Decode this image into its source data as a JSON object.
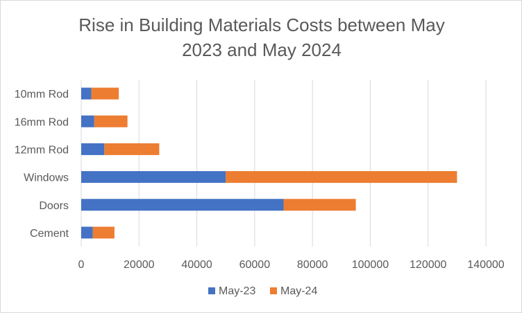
{
  "chart_data": {
    "type": "bar",
    "orientation": "horizontal",
    "stacked": true,
    "title_lines": [
      "Rise in Building Materials Costs between May",
      "2023 and May 2024"
    ],
    "categories": [
      "Cement",
      "Doors",
      "Windows",
      "12mm Rod",
      "16mm Rod",
      "10mm Rod"
    ],
    "series": [
      {
        "name": "May-23",
        "color": "#4472c4",
        "values": [
          4000,
          70000,
          50000,
          8000,
          4500,
          3500
        ]
      },
      {
        "name": "May-24",
        "color": "#ed7d31",
        "values": [
          7500,
          25000,
          80000,
          19000,
          11500,
          9500
        ]
      }
    ],
    "xlim": [
      0,
      140000
    ],
    "xticks": [
      "0",
      "20000",
      "40000",
      "60000",
      "80000",
      "100000",
      "120000",
      "140000"
    ],
    "grid": true,
    "legend_position": "bottom"
  }
}
